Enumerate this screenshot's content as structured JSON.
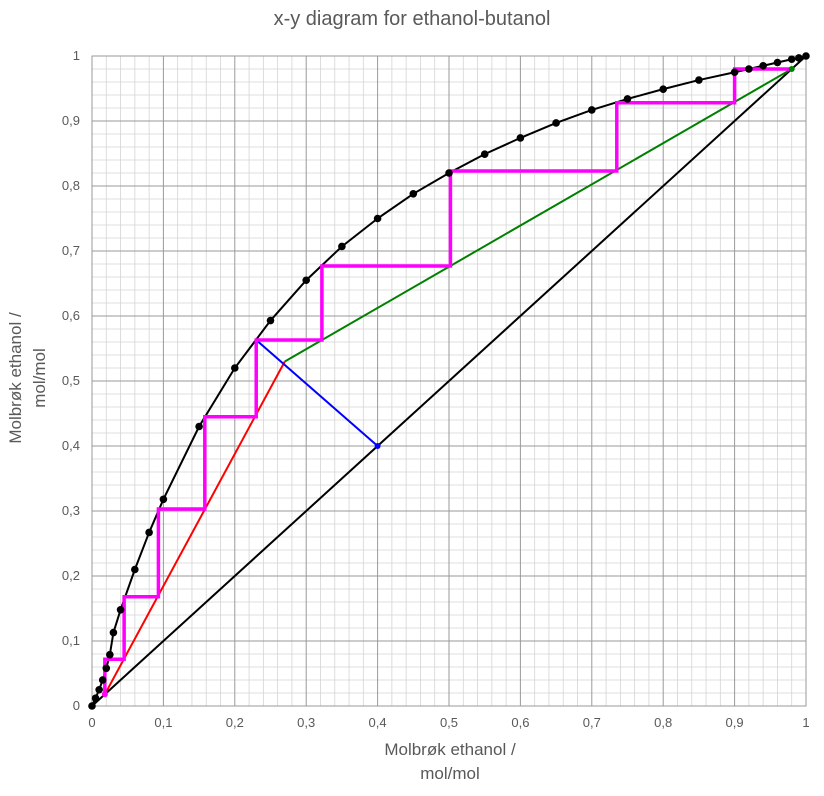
{
  "chart_data": {
    "type": "scatter",
    "title": "x-y diagram for ethanol-butanol",
    "xlabel": [
      "Molbrøk ethanol /",
      "mol/mol"
    ],
    "ylabel": [
      "Molbrøk ethanol /",
      "mol/mol"
    ],
    "xlim": [
      0,
      1
    ],
    "ylim": [
      0,
      1
    ],
    "grid": true,
    "x_ticks": [
      "0",
      "0,1",
      "0,2",
      "0,3",
      "0,4",
      "0,5",
      "0,6",
      "0,7",
      "0,8",
      "0,9",
      "1"
    ],
    "y_ticks": [
      "0",
      "0,1",
      "0,2",
      "0,3",
      "0,4",
      "0,5",
      "0,6",
      "0,7",
      "0,8",
      "0,9",
      "1"
    ],
    "series": [
      {
        "type": "line+markers",
        "color": "#000000",
        "points": [
          [
            0,
            0
          ],
          [
            0.005,
            0.012
          ],
          [
            0.01,
            0.025
          ],
          [
            0.015,
            0.04
          ],
          [
            0.02,
            0.058
          ],
          [
            0.025,
            0.079
          ],
          [
            0.03,
            0.113
          ],
          [
            0.04,
            0.148
          ],
          [
            0.06,
            0.21
          ],
          [
            0.08,
            0.267
          ],
          [
            0.1,
            0.318
          ],
          [
            0.15,
            0.43
          ],
          [
            0.2,
            0.52
          ],
          [
            0.25,
            0.593
          ],
          [
            0.3,
            0.655
          ],
          [
            0.35,
            0.707
          ],
          [
            0.4,
            0.75
          ],
          [
            0.45,
            0.788
          ],
          [
            0.5,
            0.82
          ],
          [
            0.55,
            0.849
          ],
          [
            0.6,
            0.874
          ],
          [
            0.65,
            0.897
          ],
          [
            0.7,
            0.917
          ],
          [
            0.75,
            0.934
          ],
          [
            0.8,
            0.949
          ],
          [
            0.85,
            0.963
          ],
          [
            0.9,
            0.975
          ],
          [
            0.92,
            0.98
          ],
          [
            0.94,
            0.985
          ],
          [
            0.96,
            0.99
          ],
          [
            0.98,
            0.995
          ],
          [
            0.99,
            0.997
          ],
          [
            1,
            1
          ]
        ]
      },
      {
        "type": "line",
        "color": "#000000",
        "points": [
          [
            0,
            0
          ],
          [
            1,
            1
          ]
        ]
      },
      {
        "type": "line",
        "color": "#ff0000",
        "points": [
          [
            0.018,
            0.018
          ],
          [
            0.27,
            0.53
          ]
        ]
      },
      {
        "type": "line",
        "color": "#008000",
        "points": [
          [
            0.27,
            0.53
          ],
          [
            0.98,
            0.98
          ]
        ]
      },
      {
        "type": "line",
        "color": "#0000ff",
        "points": [
          [
            0.23,
            0.563
          ],
          [
            0.4,
            0.4
          ]
        ]
      },
      {
        "type": "step",
        "color": "#ff00ff",
        "points": [
          [
            0.98,
            0.98
          ],
          [
            0.9,
            0.98
          ],
          [
            0.9,
            0.928
          ],
          [
            0.735,
            0.928
          ],
          [
            0.735,
            0.823
          ],
          [
            0.502,
            0.823
          ],
          [
            0.502,
            0.677
          ],
          [
            0.322,
            0.677
          ],
          [
            0.322,
            0.563
          ],
          [
            0.23,
            0.563
          ],
          [
            0.23,
            0.445
          ],
          [
            0.158,
            0.445
          ],
          [
            0.158,
            0.303
          ],
          [
            0.093,
            0.303
          ],
          [
            0.093,
            0.168
          ],
          [
            0.045,
            0.168
          ],
          [
            0.045,
            0.072
          ],
          [
            0.018,
            0.072
          ],
          [
            0.018,
            0.018
          ]
        ]
      }
    ]
  }
}
